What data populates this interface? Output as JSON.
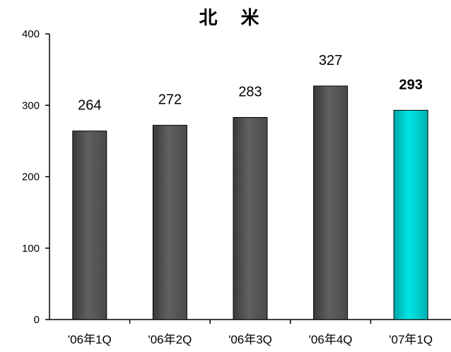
{
  "chart_data": {
    "type": "bar",
    "title": "北 米",
    "categories": [
      "'06年1Q",
      "'06年2Q",
      "'06年3Q",
      "'06年4Q",
      "'07年1Q"
    ],
    "values": [
      264,
      272,
      283,
      327,
      293
    ],
    "value_labels": [
      "264",
      "272",
      "283",
      "327",
      "293"
    ],
    "highlight_index": 4,
    "ylim": [
      0,
      400
    ],
    "yticks": [
      0,
      100,
      200,
      300,
      400
    ],
    "ytick_labels": [
      "0",
      "100",
      "200",
      "300",
      "400"
    ],
    "grid": false,
    "colors": {
      "bar": "#606060",
      "bar_highlight": "#00e5e5",
      "axis": "#000000"
    }
  }
}
